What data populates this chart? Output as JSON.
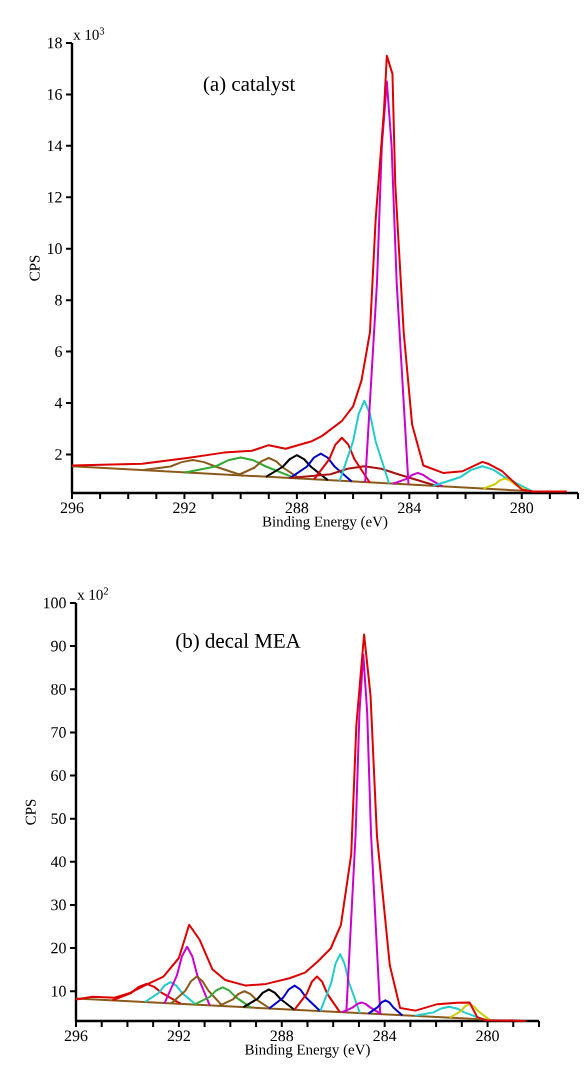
{
  "chart_data": [
    {
      "type": "line",
      "title": "(a)  catalyst",
      "xlabel": "Binding Energy (eV)",
      "ylabel": "CPS",
      "annotations": [
        "x 10$^{3}$"
      ],
      "xlim": [
        296,
        278
      ],
      "ylim": [
        0.5,
        18
      ],
      "xticks": [
        296,
        {
          "value": 295,
          "label": null
        },
        {
          "value": 294,
          "label": null
        },
        {
          "value": 293,
          "label": null
        },
        292,
        {
          "value": 291,
          "label": null
        },
        {
          "value": 290,
          "label": null
        },
        {
          "value": 289,
          "label": null
        },
        288,
        {
          "value": 287,
          "label": null
        },
        {
          "value": 286,
          "label": null
        },
        {
          "value": 285,
          "label": null
        },
        284,
        {
          "value": 283,
          "label": null
        },
        {
          "value": 282,
          "label": null
        },
        {
          "value": 281,
          "label": null
        },
        280,
        {
          "value": 279,
          "label": null
        },
        {
          "value": 278,
          "label": null
        }
      ],
      "yticks": [
        2,
        4,
        6,
        8,
        10,
        12,
        14,
        16,
        18
      ],
      "series": [
        {
          "color": "#8b5a1a",
          "x": [
            296,
            279.8
          ],
          "values": [
            1.54,
            0.58
          ]
        },
        {
          "color": "#8b5a1a",
          "x": [
            293.46,
            292.5,
            292.1,
            291.7,
            291.3,
            290.9,
            289.94
          ],
          "values": [
            1.39,
            1.53,
            1.7,
            1.78,
            1.7,
            1.53,
            1.18
          ]
        },
        {
          "color": "#33aa33",
          "x": [
            291.98,
            290.9,
            290.45,
            290,
            289.55,
            289.1,
            288.02
          ],
          "values": [
            1.3,
            1.53,
            1.77,
            1.88,
            1.77,
            1.53,
            1.06
          ]
        },
        {
          "color": "#8b5a1a",
          "x": [
            290.1,
            289.5,
            289.25,
            289,
            288.75,
            288.5,
            287.9
          ],
          "values": [
            1.19,
            1.49,
            1.74,
            1.86,
            1.74,
            1.49,
            1.06
          ]
        },
        {
          "color": "#000000",
          "x": [
            289.1,
            288.5,
            288.25,
            288,
            287.75,
            287.5,
            286.9
          ],
          "values": [
            1.13,
            1.52,
            1.82,
            1.97,
            1.82,
            1.52,
            1.0
          ]
        },
        {
          "color": "#0000cc",
          "x": [
            288.25,
            287.65,
            287.4,
            287.15,
            286.9,
            286.65,
            286.05
          ],
          "values": [
            1.08,
            1.52,
            1.87,
            2.03,
            1.87,
            1.52,
            0.95
          ]
        },
        {
          "color": "#aa1111",
          "x": [
            288.24,
            286.8,
            286.2,
            285.6,
            285.0,
            284.4,
            282.96
          ],
          "values": [
            1.08,
            1.23,
            1.44,
            1.54,
            1.44,
            1.23,
            0.75
          ]
        },
        {
          "color": "#dd0000",
          "x": [
            287.39,
            286.85,
            286.63,
            286.4,
            286.17,
            285.95,
            285.41
          ],
          "values": [
            1.03,
            1.81,
            2.38,
            2.65,
            2.38,
            1.81,
            0.91
          ]
        },
        {
          "color": "#22cccc",
          "x": [
            286.48,
            286.0,
            285.8,
            285.6,
            285.4,
            285.2,
            284.72
          ],
          "values": [
            0.97,
            2.51,
            3.58,
            4.09,
            3.58,
            2.51,
            0.87
          ]
        },
        {
          "color": "#cc00cc",
          "x": [
            285.57,
            285.15,
            284.98,
            284.8,
            284.63,
            284.45,
            284.03
          ],
          "values": [
            0.92,
            8.68,
            13.98,
            16.5,
            13.98,
            8.68,
            0.83
          ]
        },
        {
          "color": "#cc00cc",
          "x": [
            284.58,
            284.1,
            283.9,
            283.7,
            283.5,
            283.3,
            282.82
          ],
          "values": [
            0.86,
            1.05,
            1.2,
            1.28,
            1.2,
            1.05,
            0.76
          ]
        },
        {
          "color": "#22cccc",
          "x": [
            283.16,
            282.2,
            281.8,
            281.4,
            281.0,
            280.6,
            279.64
          ],
          "values": [
            0.77,
            1.11,
            1.4,
            1.54,
            1.4,
            1.11,
            0.57
          ]
        },
        {
          "color": "#cccc00",
          "x": [
            281.37,
            280.95,
            280.78,
            280.6,
            280.43,
            280.25,
            279.83
          ],
          "values": [
            0.67,
            0.84,
            0.99,
            1.06,
            0.99,
            0.84,
            0.61
          ]
        },
        {
          "color": "#dd0000",
          "x": [
            296,
            293.5,
            291.9,
            290.6,
            289.6,
            289.0,
            288.4,
            287.5,
            287.1,
            286.4,
            286.0,
            285.7,
            285.4,
            285.2,
            284.9,
            284.8,
            284.6,
            284.5,
            284.2,
            283.9,
            283.5,
            282.8,
            282.1,
            281.4,
            281.2,
            280.7,
            280.0,
            279.6,
            278.4
          ],
          "values": [
            1.57,
            1.64,
            1.86,
            2.07,
            2.14,
            2.36,
            2.22,
            2.5,
            2.72,
            3.3,
            3.87,
            4.88,
            6.75,
            11.1,
            15.4,
            17.5,
            16.8,
            12.5,
            6.75,
            3.15,
            1.57,
            1.28,
            1.35,
            1.71,
            1.64,
            1.35,
            0.63,
            0.56,
            0.56
          ]
        }
      ]
    },
    {
      "type": "line",
      "title": "(b)  decal MEA",
      "xlabel": "Binding Energy (eV)",
      "ylabel": "CPS",
      "annotations": [
        "x 10$^{2}$"
      ],
      "xlim": [
        296,
        278
      ],
      "ylim": [
        3.1,
        100
      ],
      "xticks": [
        296,
        {
          "value": 295,
          "label": null
        },
        {
          "value": 294,
          "label": null
        },
        {
          "value": 293,
          "label": null
        },
        292,
        {
          "value": 291,
          "label": null
        },
        {
          "value": 290,
          "label": null
        },
        {
          "value": 289,
          "label": null
        },
        288,
        {
          "value": 287,
          "label": null
        },
        {
          "value": 286,
          "label": null
        },
        {
          "value": 285,
          "label": null
        },
        284,
        {
          "value": 283,
          "label": null
        },
        {
          "value": 282,
          "label": null
        },
        {
          "value": 281,
          "label": null
        },
        280,
        {
          "value": 279,
          "label": null
        },
        {
          "value": 278,
          "label": null
        }
      ],
      "yticks": [
        10,
        20,
        30,
        40,
        50,
        60,
        70,
        80,
        90,
        100
      ],
      "series": [
        {
          "color": "#8b5a1a",
          "x": [
            296,
            279.9
          ],
          "values": [
            8.3,
            3.4
          ]
        },
        {
          "color": "#dd0000",
          "x": [
            294.58,
            293.86,
            293.56,
            293.26,
            292.96,
            292.66,
            291.94
          ],
          "values": [
            7.9,
            9.6,
            11.0,
            11.7,
            11.0,
            9.6,
            7.1
          ]
        },
        {
          "color": "#22cccc",
          "x": [
            293.32,
            292.78,
            292.56,
            292.33,
            292.1,
            291.88,
            291.34
          ],
          "values": [
            7.5,
            9.6,
            11.3,
            12.1,
            11.3,
            9.6,
            6.9
          ]
        },
        {
          "color": "#cc00cc",
          "x": [
            292.56,
            292.08,
            291.88,
            291.68,
            291.48,
            291.28,
            290.8
          ],
          "values": [
            7.2,
            13.6,
            18.1,
            20.3,
            18.1,
            13.6,
            6.7
          ]
        },
        {
          "color": "#8b5a1a",
          "x": [
            292.29,
            291.75,
            291.53,
            291.3,
            291.08,
            290.85,
            290.31
          ],
          "values": [
            7.2,
            10.1,
            12.3,
            13.4,
            12.3,
            10.1,
            6.6
          ]
        },
        {
          "color": "#33aa33",
          "x": [
            291.4,
            290.8,
            290.55,
            290.3,
            290.05,
            289.8,
            289.2
          ],
          "values": [
            6.9,
            8.7,
            10.2,
            10.9,
            10.2,
            8.7,
            6.2
          ]
        },
        {
          "color": "#8b5a1a",
          "x": [
            290.44,
            289.9,
            289.68,
            289.45,
            289.23,
            289.0,
            288.46
          ],
          "values": [
            6.6,
            8.1,
            9.4,
            10.0,
            9.4,
            8.1,
            6.0
          ]
        },
        {
          "color": "#000000",
          "x": [
            289.49,
            288.95,
            288.73,
            288.5,
            288.28,
            288.05,
            287.51
          ],
          "values": [
            6.3,
            8.2,
            9.7,
            10.4,
            9.7,
            8.2,
            5.7
          ]
        },
        {
          "color": "#0000cc",
          "x": [
            288.49,
            287.95,
            287.73,
            287.5,
            287.28,
            287.05,
            286.51
          ],
          "values": [
            6.0,
            8.5,
            10.4,
            11.3,
            10.4,
            8.5,
            5.4
          ]
        },
        {
          "color": "#dd0000",
          "x": [
            287.51,
            287.03,
            286.83,
            286.63,
            286.43,
            286.23,
            285.75
          ],
          "values": [
            5.7,
            9.4,
            12.2,
            13.4,
            12.2,
            9.4,
            5.2
          ]
        },
        {
          "color": "#22cccc",
          "x": [
            286.5,
            286.08,
            285.91,
            285.73,
            285.56,
            285.38,
            284.96
          ],
          "values": [
            5.4,
            11.9,
            16.4,
            18.6,
            16.4,
            11.9,
            4.9
          ]
        },
        {
          "color": "#cc00cc",
          "x": [
            285.49,
            285.13,
            284.98,
            284.83,
            284.68,
            284.53,
            284.17
          ],
          "values": [
            5.1,
            46.4,
            74.7,
            88.0,
            74.7,
            46.4,
            4.7
          ]
        },
        {
          "color": "#cc00cc",
          "x": [
            285.67,
            285.25,
            285.08,
            284.9,
            284.73,
            284.55,
            284.13
          ],
          "values": [
            5.1,
            6.2,
            7.0,
            7.4,
            7.0,
            6.2,
            4.7
          ]
        },
        {
          "color": "#0000cc",
          "x": [
            284.63,
            284.27,
            284.12,
            283.97,
            283.82,
            283.67,
            283.31
          ],
          "values": [
            4.8,
            6.3,
            7.4,
            7.9,
            7.4,
            6.3,
            4.4
          ]
        },
        {
          "color": "#22cccc",
          "x": [
            282.82,
            282.1,
            281.8,
            281.5,
            281.2,
            280.9,
            280.18
          ],
          "values": [
            4.3,
            5.1,
            6.0,
            6.4,
            6.0,
            5.1,
            3.5
          ]
        },
        {
          "color": "#cccc00",
          "x": [
            281.47,
            281.05,
            280.88,
            280.7,
            280.53,
            280.35,
            279.93
          ],
          "values": [
            3.9,
            5.3,
            6.5,
            7.0,
            6.5,
            5.3,
            3.4
          ]
        },
        {
          "color": "#dd0000",
          "x": [
            296,
            295.35,
            294.5,
            293.9,
            293.2,
            292.6,
            292.0,
            291.6,
            291.2,
            290.7,
            290.2,
            289.4,
            288.6,
            287.7,
            287.1,
            286.6,
            286.1,
            285.7,
            285.3,
            285.1,
            284.8,
            284.55,
            284.3,
            283.8,
            283.4,
            282.8,
            281.95,
            281.2,
            280.7,
            280.4,
            280.1,
            278.5
          ],
          "values": [
            8.1,
            8.7,
            8.5,
            9.6,
            11.7,
            13.4,
            17.7,
            25.4,
            22.0,
            15.1,
            12.6,
            11.3,
            11.7,
            13.0,
            14.3,
            16.9,
            19.9,
            25.4,
            41.7,
            71.7,
            92.7,
            78.6,
            46.0,
            16.0,
            6.1,
            5.5,
            7.0,
            7.3,
            7.4,
            4.0,
            3.3,
            3.1
          ]
        }
      ]
    }
  ]
}
